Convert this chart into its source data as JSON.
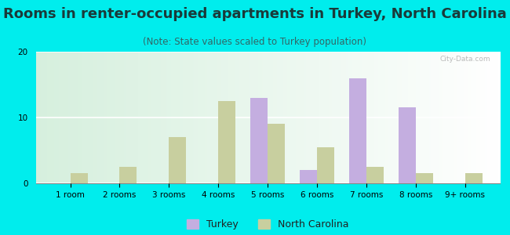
{
  "title": "Rooms in renter-occupied apartments in Turkey, North Carolina",
  "subtitle": "(Note: State values scaled to Turkey population)",
  "categories": [
    "1 room",
    "2 rooms",
    "3 rooms",
    "4 rooms",
    "5 rooms",
    "6 rooms",
    "7 rooms",
    "8 rooms",
    "9+ rooms"
  ],
  "turkey_values": [
    0,
    0,
    0,
    0,
    13,
    2,
    16,
    11.5,
    0
  ],
  "nc_values": [
    1.5,
    2.5,
    7,
    12.5,
    9,
    5.5,
    2.5,
    1.5,
    1.5
  ],
  "turkey_color": "#c4aee0",
  "nc_color": "#c8cf9f",
  "background_color": "#00eded",
  "title_color": "#1a3a3a",
  "subtitle_color": "#336666",
  "ylim": [
    0,
    20
  ],
  "yticks": [
    0,
    10,
    20
  ],
  "bar_width": 0.35,
  "title_fontsize": 13,
  "subtitle_fontsize": 8.5,
  "tick_fontsize": 7.5,
  "legend_fontsize": 9,
  "watermark": "City-Data.com"
}
